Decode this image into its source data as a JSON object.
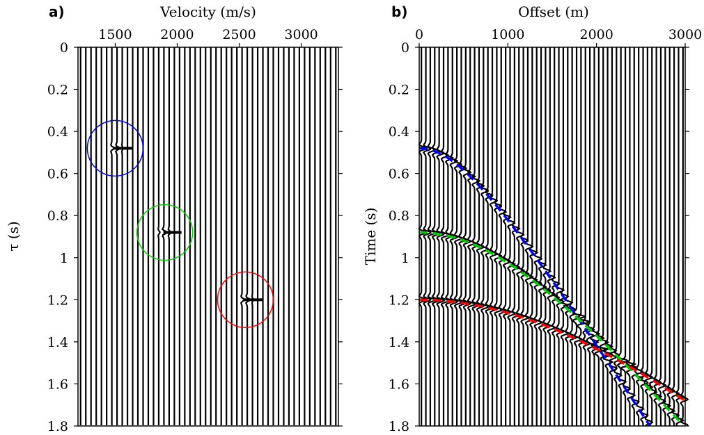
{
  "chart_data": [
    {
      "type": "wiggle",
      "panel_label": "a)",
      "xlabel": "Velocity (m/s)",
      "ylabel": "τ (s)",
      "x_ticks": [
        1500,
        2000,
        2500,
        3000
      ],
      "y_ticks": [
        0,
        0.2,
        0.4,
        0.6,
        0.8,
        1,
        1.2,
        1.4,
        1.6,
        1.8
      ],
      "xlim": [
        1200,
        3300
      ],
      "ylim": [
        0,
        1.8
      ],
      "y_inverted": true,
      "x_axis_position": "top",
      "trace_count": 50,
      "events": [
        {
          "velocity": 1500,
          "tau": 0.48,
          "circle_color": "#0000ff"
        },
        {
          "velocity": 1900,
          "tau": 0.88,
          "circle_color": "#00cc00"
        },
        {
          "velocity": 2550,
          "tau": 1.2,
          "circle_color": "#ff0000"
        }
      ]
    },
    {
      "type": "wiggle",
      "panel_label": "b)",
      "xlabel": "Offset (m)",
      "ylabel": "Time (s)",
      "x_ticks": [
        0,
        1000,
        2000,
        3000
      ],
      "y_ticks": [
        0,
        0.2,
        0.4,
        0.6,
        0.8,
        1,
        1.2,
        1.4,
        1.6,
        1.8
      ],
      "xlim": [
        0,
        3000
      ],
      "ylim": [
        0,
        1.8
      ],
      "y_inverted": true,
      "x_axis_position": "top",
      "trace_count": 60,
      "hyperbolas": [
        {
          "t0": 0.48,
          "velocity": 1500,
          "color": "#0000ff"
        },
        {
          "t0": 0.88,
          "velocity": 1900,
          "color": "#00cc00"
        },
        {
          "t0": 1.2,
          "velocity": 2550,
          "color": "#ff0000"
        }
      ]
    }
  ]
}
